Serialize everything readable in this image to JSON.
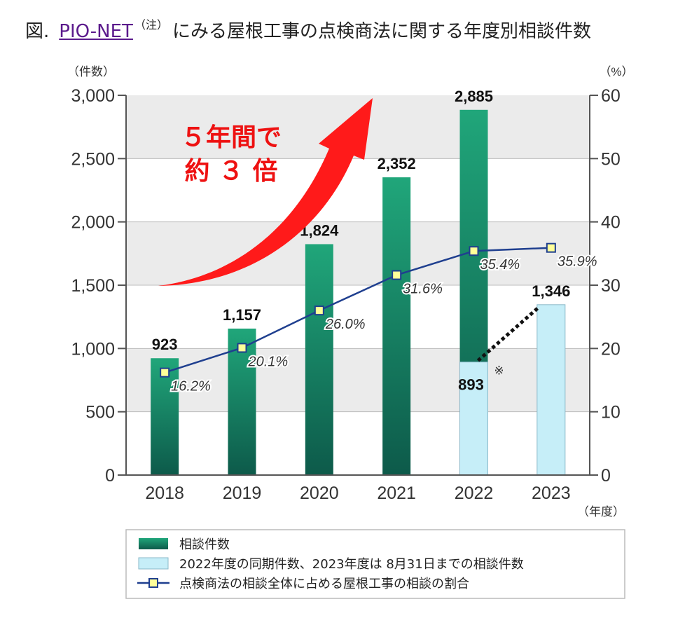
{
  "title": {
    "prefix": "図.",
    "link": "PIO-NET",
    "note": "（注）",
    "rest": "にみる屋根工事の点検商法に関する年度別相談件数"
  },
  "callout": {
    "line1": "５年間で",
    "line2": "約 ３ 倍"
  },
  "footnote_mark": "※",
  "legend": {
    "items": [
      "相談件数",
      "2022年度の同期件数、2023年度は 8月31日までの相談件数",
      "点検商法の相談全体に占める屋根工事の相談の割合"
    ]
  },
  "colors": {
    "bar_top": "#20a67a",
    "bar_bottom": "#0d5a4a",
    "bar_light": "#c6eef8",
    "line": "#1f3f8f",
    "marker": "#ffff99",
    "arrow": "#ff1a1a",
    "callout_text": "#ee1111"
  },
  "chart_data": {
    "type": "bar",
    "categories": [
      "2018",
      "2019",
      "2020",
      "2021",
      "2022",
      "2023"
    ],
    "series": [
      {
        "name": "相談件数",
        "values": [
          923,
          1157,
          1824,
          2352,
          2885,
          null
        ]
      },
      {
        "name": "2022年度の同期件数、2023年度は 8月31日までの相談件数",
        "values": [
          null,
          null,
          null,
          null,
          893,
          1346
        ]
      },
      {
        "name": "点検商法の相談全体に占める屋根工事の相談の割合",
        "type": "line",
        "axis": "right",
        "values": [
          16.2,
          20.1,
          26.0,
          31.6,
          35.4,
          35.9
        ]
      }
    ],
    "bar_labels": [
      "923",
      "1,157",
      "1,824",
      "2,352",
      "2,885",
      "1,346"
    ],
    "partial_label": "893",
    "pct_labels": [
      "16.2%",
      "20.1%",
      "26.0%",
      "31.6%",
      "35.4%",
      "35.9%"
    ],
    "ylabel_left": "（件数）",
    "ylabel_right": "（%）",
    "xlabel": "（年度）",
    "ylim": [
      0,
      3000
    ],
    "ylim_right": [
      0,
      60
    ],
    "yticks_left": [
      "0",
      "500",
      "1,000",
      "1,500",
      "2,000",
      "2,500",
      "3,000"
    ],
    "yticks_right": [
      "0",
      "10",
      "20",
      "30",
      "40",
      "50",
      "60"
    ]
  }
}
